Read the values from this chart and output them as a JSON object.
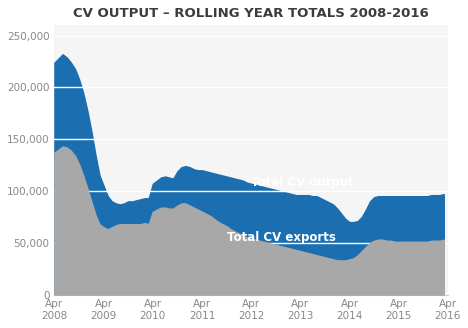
{
  "title": "CV OUTPUT – ROLLING YEAR TOTALS 2008-2016",
  "x_labels": [
    "Apr\n2008",
    "Apr\n2009",
    "Apr\n2010",
    "Apr\n2011",
    "Apr\n2012",
    "Apr\n2013",
    "Apr\n2014",
    "Apr\n2015",
    "Apr\n2016"
  ],
  "x_tick_positions": [
    0,
    12,
    24,
    36,
    48,
    60,
    72,
    84,
    96
  ],
  "total_cv_output": [
    224000,
    228000,
    232000,
    229000,
    224000,
    218000,
    208000,
    195000,
    178000,
    158000,
    135000,
    115000,
    105000,
    95000,
    90000,
    88000,
    87000,
    88000,
    90000,
    90000,
    91000,
    92000,
    93000,
    93000,
    107000,
    110000,
    113000,
    114000,
    113000,
    112000,
    119000,
    123000,
    124000,
    123000,
    121000,
    120000,
    120000,
    119000,
    118000,
    117000,
    116000,
    115000,
    114000,
    113000,
    112000,
    111000,
    110000,
    108000,
    107000,
    106000,
    105000,
    104000,
    103000,
    102000,
    101000,
    100000,
    99000,
    98000,
    97000,
    96000,
    96000,
    96000,
    96000,
    95000,
    95000,
    93000,
    91000,
    89000,
    87000,
    83000,
    78000,
    73000,
    70000,
    70000,
    71000,
    75000,
    82000,
    90000,
    94000,
    95000,
    95000,
    95000,
    95000,
    95000,
    95000,
    95000,
    95000,
    95000,
    95000,
    95000,
    95000,
    95000,
    96000,
    96000,
    96000,
    97000
  ],
  "total_cv_exports": [
    137000,
    140000,
    143000,
    142000,
    139000,
    134000,
    126000,
    115000,
    103000,
    90000,
    77000,
    68000,
    65000,
    63000,
    65000,
    67000,
    68000,
    68000,
    68000,
    68000,
    68000,
    68000,
    69000,
    68000,
    80000,
    82000,
    84000,
    84000,
    83000,
    83000,
    86000,
    88000,
    88000,
    86000,
    84000,
    82000,
    80000,
    78000,
    76000,
    73000,
    70000,
    68000,
    66000,
    63000,
    61000,
    59000,
    57000,
    55000,
    54000,
    53000,
    52000,
    51000,
    50000,
    49000,
    48000,
    47000,
    46000,
    45000,
    44000,
    43000,
    42000,
    41000,
    40000,
    39000,
    38000,
    37000,
    36000,
    35000,
    34000,
    33000,
    33000,
    33000,
    34000,
    35000,
    38000,
    42000,
    46000,
    50000,
    52000,
    53000,
    53000,
    52000,
    52000,
    51000,
    51000,
    51000,
    51000,
    51000,
    51000,
    51000,
    51000,
    51000,
    52000,
    52000,
    52000,
    53000
  ],
  "output_color": "#1b6eaf",
  "exports_color": "#a8a8a8",
  "background_color": "#ffffff",
  "plot_bg_color": "#f5f5f5",
  "title_color": "#3c3c3c",
  "label_output_color": "#ffffff",
  "label_exports_color": "#ffffff",
  "gridline_color": "#ffffff",
  "axis_line_color": "#cccccc",
  "tick_color": "#888888",
  "ylim": [
    0,
    260000
  ],
  "yticks": [
    0,
    50000,
    100000,
    150000,
    200000,
    250000
  ],
  "ytick_labels": [
    "0",
    "50,000",
    "100,000",
    "150,000",
    "200,000",
    "250,000"
  ],
  "label_output": "Total CV output",
  "title_fontsize": 9.5,
  "tick_fontsize": 7.5,
  "label_fontsize": 8.5
}
